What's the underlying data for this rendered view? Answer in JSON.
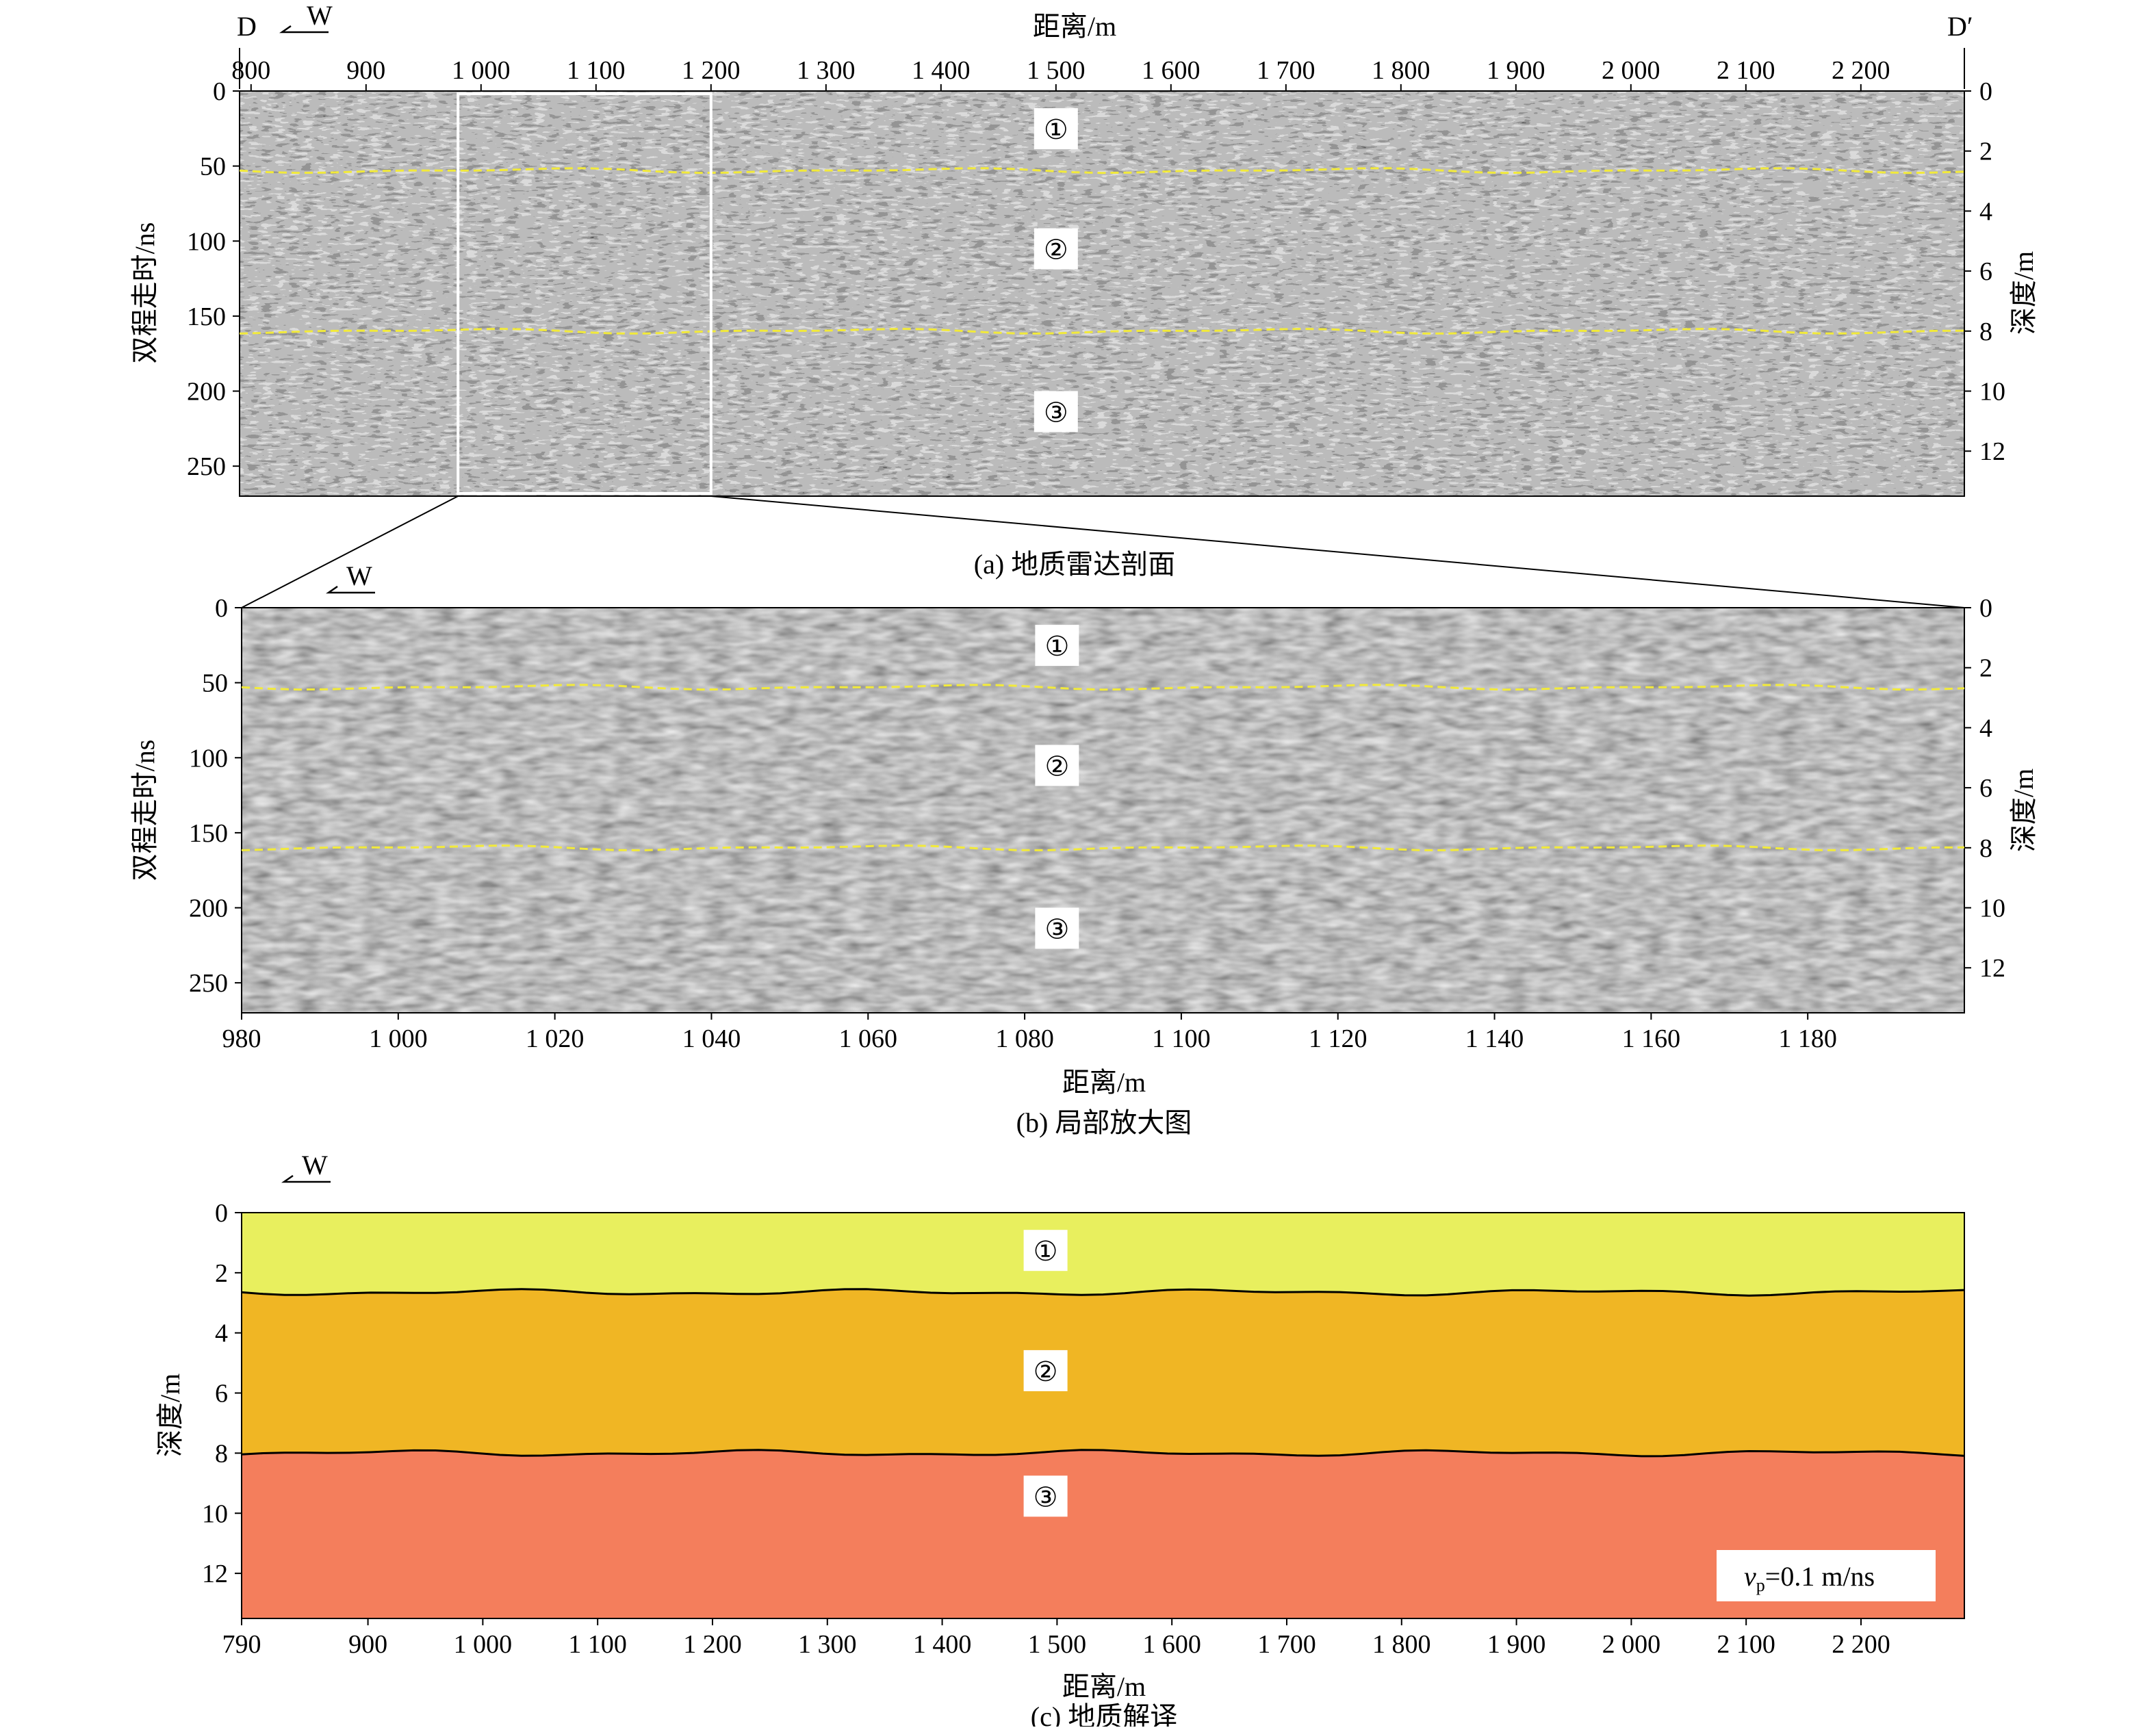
{
  "panel_a": {
    "caption": "(a) 地质雷达剖面",
    "top_axis_label": "距离/m",
    "left_axis_label": "双程走时/ns",
    "right_axis_label": "深度/m",
    "end_label_left": "D",
    "end_label_right": "D′",
    "direction_label": "W",
    "x_ticks": [
      "800",
      "900",
      "1 000",
      "1 100",
      "1 200",
      "1 300",
      "1 400",
      "1 500",
      "1 600",
      "1 700",
      "1 800",
      "1 900",
      "2 000",
      "2 100",
      "2 200"
    ],
    "x_tick_values": [
      800,
      900,
      1000,
      1100,
      1200,
      1300,
      1400,
      1500,
      1600,
      1700,
      1800,
      1900,
      2000,
      2100,
      2200
    ],
    "x_range": [
      790,
      2290
    ],
    "time_ticks": [
      "0",
      "50",
      "100",
      "150",
      "200",
      "250"
    ],
    "time_tick_values": [
      0,
      50,
      100,
      150,
      200,
      250
    ],
    "time_range": [
      0,
      270
    ],
    "depth_ticks": [
      "0",
      "2",
      "4",
      "6",
      "8",
      "10",
      "12"
    ],
    "depth_tick_values": [
      0,
      2,
      4,
      6,
      8,
      10,
      12
    ],
    "zoom_box_range": [
      980,
      1200
    ],
    "zones": [
      "①",
      "②",
      "③"
    ],
    "interface_times_ns": [
      53,
      160
    ]
  },
  "panel_b": {
    "caption": "(b) 局部放大图",
    "bottom_axis_label": "距离/m",
    "left_axis_label": "双程走时/ns",
    "right_axis_label": "深度/m",
    "direction_label": "W",
    "x_ticks": [
      "980",
      "1 000",
      "1 020",
      "1 040",
      "1 060",
      "1 080",
      "1 100",
      "1 120",
      "1 140",
      "1 160",
      "1 180"
    ],
    "x_tick_values": [
      980,
      1000,
      1020,
      1040,
      1060,
      1080,
      1100,
      1120,
      1140,
      1160,
      1180
    ],
    "x_range": [
      980,
      1200
    ],
    "time_ticks": [
      "0",
      "50",
      "100",
      "150",
      "200",
      "250"
    ],
    "time_tick_values": [
      0,
      50,
      100,
      150,
      200,
      250
    ],
    "time_range": [
      0,
      270
    ],
    "depth_ticks": [
      "0",
      "2",
      "4",
      "6",
      "8",
      "10",
      "12"
    ],
    "depth_tick_values": [
      0,
      2,
      4,
      6,
      8,
      10,
      12
    ],
    "zones": [
      "①",
      "②",
      "③"
    ],
    "interface_times_ns": [
      53,
      160
    ]
  },
  "panel_c": {
    "caption": "(c) 地质解译",
    "bottom_axis_label": "距离/m",
    "left_axis_label": "深度/m",
    "direction_label": "W",
    "x_ticks": [
      "790",
      "900",
      "1 000",
      "1 100",
      "1 200",
      "1 300",
      "1 400",
      "1 500",
      "1 600",
      "1 700",
      "1 800",
      "1 900",
      "2 000",
      "2 100",
      "2 200"
    ],
    "x_tick_values": [
      790,
      900,
      1000,
      1100,
      1200,
      1300,
      1400,
      1500,
      1600,
      1700,
      1800,
      1900,
      2000,
      2100,
      2200
    ],
    "x_range": [
      790,
      2290
    ],
    "depth_ticks": [
      "0",
      "2",
      "4",
      "6",
      "8",
      "10",
      "12"
    ],
    "depth_tick_values": [
      0,
      2,
      4,
      6,
      8,
      10,
      12
    ],
    "depth_range": [
      0,
      13.5
    ],
    "zones": [
      "①",
      "②",
      "③"
    ],
    "zone_colors": [
      "#e8ef5e",
      "#f0b624",
      "#f47e5c"
    ],
    "interface_depths_m": [
      2.65,
      8.0
    ],
    "velocity_label_v": "v",
    "velocity_label_sub": "p",
    "velocity_label_rest": "=0.1 m/ns"
  }
}
